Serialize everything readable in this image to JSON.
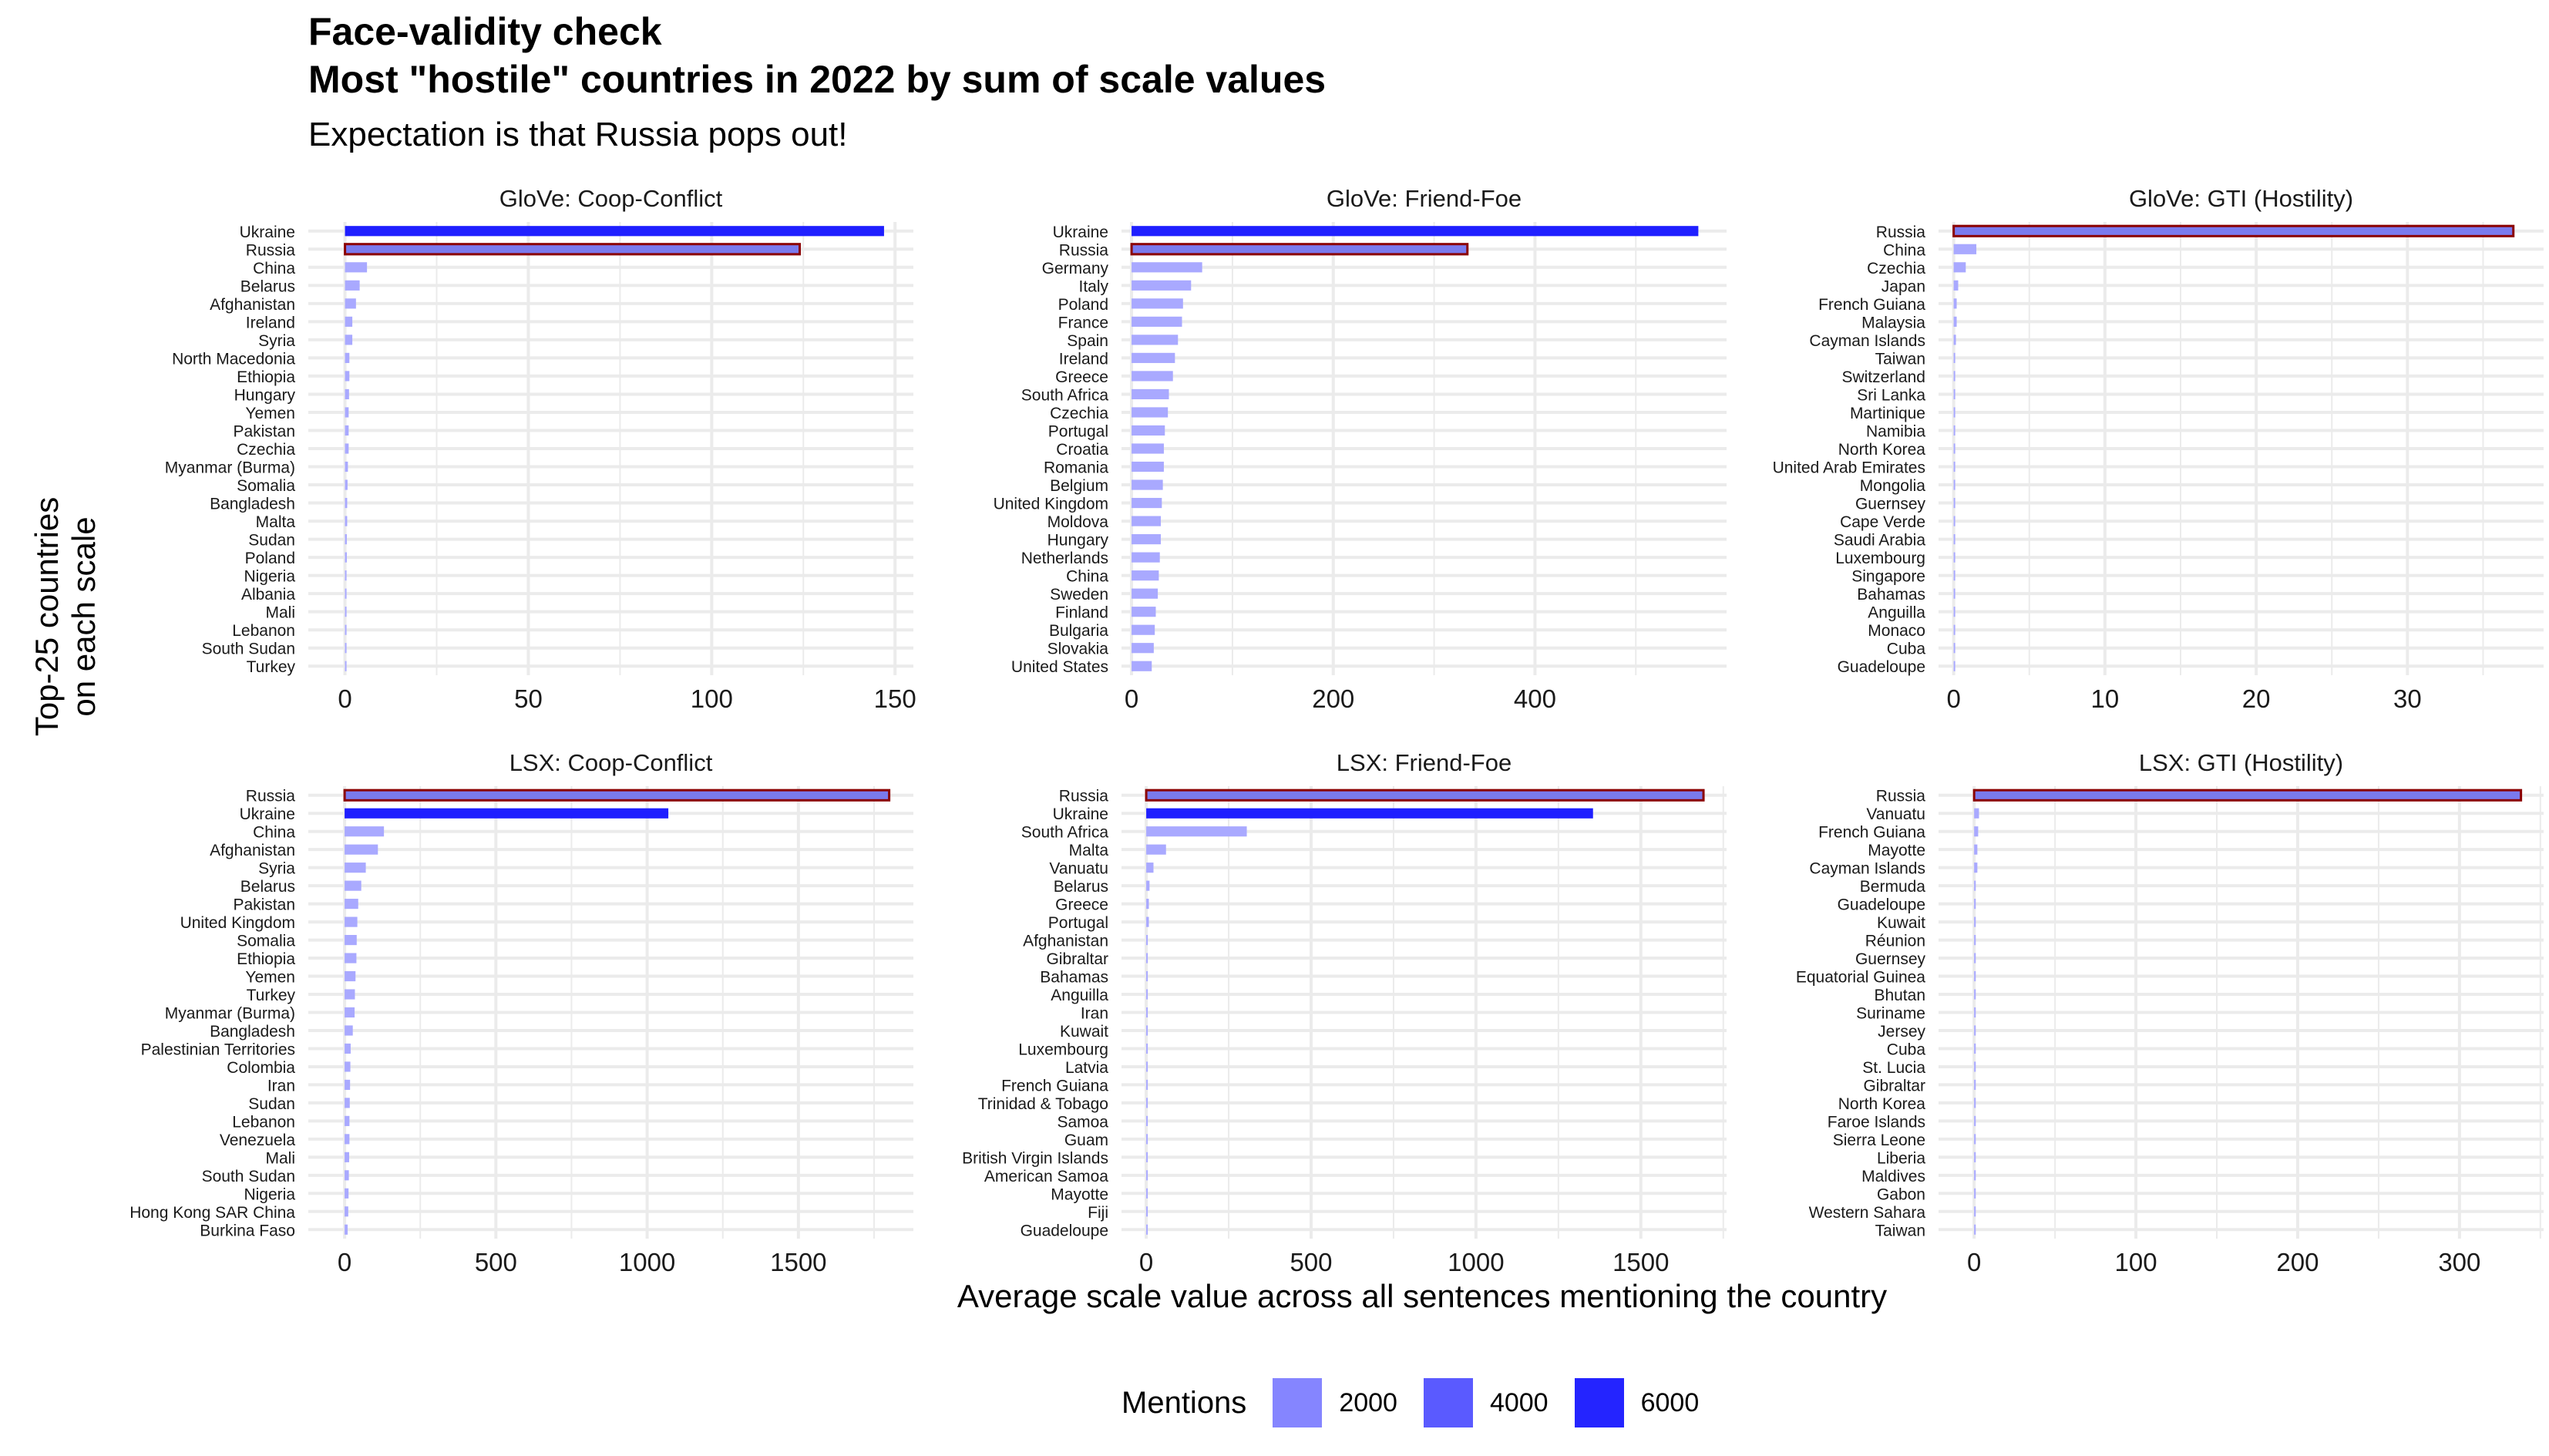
{
  "title_line1": "Face-validity check",
  "title_line2": "Most \"hostile\" countries in 2022 by sum of scale values",
  "subtitle": "Expectation is that Russia pops out!",
  "y_axis_label_line1": "Top-25 countries",
  "y_axis_label_line2": "on each scale",
  "x_axis_label": "Average scale value across all sentences mentioning the country",
  "legend": {
    "title": "Mentions",
    "items": [
      {
        "label": "2000",
        "color": "#8585ff"
      },
      {
        "label": "4000",
        "color": "#5a5aff"
      },
      {
        "label": "6000",
        "color": "#2424ff"
      }
    ]
  },
  "colors": {
    "light": "#a9a9ff",
    "mid": "#7a7aee",
    "dark": "#1f1fff",
    "highlight_outline": "#8b0000",
    "grid": "#ebebeb"
  },
  "chart_data": [
    {
      "type": "bar",
      "orientation": "horizontal",
      "title": "GloVe: Coop-Conflict",
      "xlim": [
        -10,
        155
      ],
      "xticks": [
        0,
        50,
        100,
        150
      ],
      "categories": [
        "Ukraine",
        "Russia",
        "China",
        "Belarus",
        "Afghanistan",
        "Ireland",
        "Syria",
        "North Macedonia",
        "Ethiopia",
        "Hungary",
        "Yemen",
        "Pakistan",
        "Czechia",
        "Myanmar (Burma)",
        "Somalia",
        "Bangladesh",
        "Malta",
        "Sudan",
        "Poland",
        "Nigeria",
        "Albania",
        "Mali",
        "Lebanon",
        "South Sudan",
        "Turkey"
      ],
      "values": [
        147,
        124,
        6,
        4,
        3,
        2,
        2,
        1.2,
        1.2,
        1.1,
        1,
        1,
        1,
        0.8,
        0.7,
        0.6,
        0.6,
        0.5,
        0.5,
        0.4,
        0.4,
        0.4,
        0.4,
        0.3,
        0.3
      ],
      "mentions": [
        "dark",
        "mid",
        "light",
        "light",
        "light",
        "light",
        "light",
        "light",
        "light",
        "light",
        "light",
        "light",
        "light",
        "light",
        "light",
        "light",
        "light",
        "light",
        "light",
        "light",
        "light",
        "light",
        "light",
        "light",
        "light"
      ],
      "highlight": "Russia"
    },
    {
      "type": "bar",
      "orientation": "horizontal",
      "title": "GloVe: Friend-Foe",
      "xlim": [
        -10,
        590
      ],
      "xticks": [
        0,
        200,
        400
      ],
      "categories": [
        "Ukraine",
        "Russia",
        "Germany",
        "Italy",
        "Poland",
        "France",
        "Spain",
        "Ireland",
        "Greece",
        "South Africa",
        "Czechia",
        "Portugal",
        "Croatia",
        "Romania",
        "Belgium",
        "United Kingdom",
        "Moldova",
        "Hungary",
        "Netherlands",
        "China",
        "Sweden",
        "Finland",
        "Bulgaria",
        "Slovakia",
        "United States"
      ],
      "values": [
        562,
        333,
        70,
        59,
        51,
        50,
        46,
        43,
        41,
        37,
        36,
        33,
        32,
        32,
        31,
        30,
        29,
        29,
        28,
        27,
        26,
        24,
        23,
        22,
        20
      ],
      "mentions": [
        "dark",
        "mid",
        "light",
        "light",
        "light",
        "light",
        "light",
        "light",
        "light",
        "light",
        "light",
        "light",
        "light",
        "light",
        "light",
        "light",
        "light",
        "light",
        "light",
        "light",
        "light",
        "light",
        "light",
        "light",
        "light"
      ],
      "highlight": "Russia"
    },
    {
      "type": "bar",
      "orientation": "horizontal",
      "title": "GloVe: GTI (Hostility)",
      "xlim": [
        -1,
        39
      ],
      "xticks": [
        0,
        10,
        20,
        30
      ],
      "categories": [
        "Russia",
        "China",
        "Czechia",
        "Japan",
        "French Guiana",
        "Malaysia",
        "Cayman Islands",
        "Taiwan",
        "Switzerland",
        "Sri Lanka",
        "Martinique",
        "Namibia",
        "North Korea",
        "United Arab Emirates",
        "Mongolia",
        "Guernsey",
        "Cape Verde",
        "Saudi Arabia",
        "Luxembourg",
        "Singapore",
        "Bahamas",
        "Anguilla",
        "Monaco",
        "Cuba",
        "Guadeloupe"
      ],
      "values": [
        37,
        1.5,
        0.8,
        0.3,
        0.2,
        0.2,
        0.15,
        0.1,
        0.1,
        0.1,
        0.1,
        0.1,
        0.1,
        0.1,
        0.1,
        0.1,
        0.1,
        0.1,
        0.1,
        0.1,
        0.1,
        0.1,
        0.1,
        0.1,
        0.1
      ],
      "mentions": [
        "mid",
        "light",
        "light",
        "light",
        "light",
        "light",
        "light",
        "light",
        "light",
        "light",
        "light",
        "light",
        "light",
        "light",
        "light",
        "light",
        "light",
        "light",
        "light",
        "light",
        "light",
        "light",
        "light",
        "light",
        "light"
      ],
      "highlight": "Russia"
    },
    {
      "type": "bar",
      "orientation": "horizontal",
      "title": "LSX: Coop-Conflict",
      "xlim": [
        -120,
        1880
      ],
      "xticks": [
        0,
        500,
        1000,
        1500
      ],
      "categories": [
        "Russia",
        "Ukraine",
        "China",
        "Afghanistan",
        "Syria",
        "Belarus",
        "Pakistan",
        "United Kingdom",
        "Somalia",
        "Ethiopia",
        "Yemen",
        "Turkey",
        "Myanmar (Burma)",
        "Bangladesh",
        "Palestinian Territories",
        "Colombia",
        "Iran",
        "Sudan",
        "Lebanon",
        "Venezuela",
        "Mali",
        "South Sudan",
        "Nigeria",
        "Hong Kong SAR China",
        "Burkina Faso"
      ],
      "values": [
        1800,
        1070,
        130,
        110,
        70,
        55,
        45,
        42,
        40,
        39,
        36,
        34,
        33,
        27,
        20,
        19,
        18,
        17,
        16,
        16,
        15,
        14,
        13,
        12,
        10
      ],
      "mentions": [
        "mid",
        "dark",
        "light",
        "light",
        "light",
        "light",
        "light",
        "light",
        "light",
        "light",
        "light",
        "light",
        "light",
        "light",
        "light",
        "light",
        "light",
        "light",
        "light",
        "light",
        "light",
        "light",
        "light",
        "light",
        "light"
      ],
      "highlight": "Russia"
    },
    {
      "type": "bar",
      "orientation": "horizontal",
      "title": "LSX: Friend-Foe",
      "xlim": [
        -75,
        1760
      ],
      "xticks": [
        0,
        500,
        1000,
        1500
      ],
      "categories": [
        "Russia",
        "Ukraine",
        "South Africa",
        "Malta",
        "Vanuatu",
        "Belarus",
        "Greece",
        "Portugal",
        "Afghanistan",
        "Gibraltar",
        "Bahamas",
        "Anguilla",
        "Iran",
        "Kuwait",
        "Luxembourg",
        "Latvia",
        "French Guiana",
        "Trinidad & Tobago",
        "Samoa",
        "Guam",
        "British Virgin Islands",
        "American Samoa",
        "Mayotte",
        "Fiji",
        "Guadeloupe"
      ],
      "values": [
        1690,
        1355,
        305,
        60,
        22,
        10,
        8,
        8,
        4,
        3,
        3,
        3,
        2,
        2,
        2,
        2,
        2,
        1,
        1,
        1,
        1,
        1,
        1,
        1,
        1
      ],
      "mentions": [
        "mid",
        "dark",
        "light",
        "light",
        "light",
        "light",
        "light",
        "light",
        "light",
        "light",
        "light",
        "light",
        "light",
        "light",
        "light",
        "light",
        "light",
        "light",
        "light",
        "light",
        "light",
        "light",
        "light",
        "light",
        "light"
      ],
      "highlight": "Russia"
    },
    {
      "type": "bar",
      "orientation": "horizontal",
      "title": "LSX: GTI (Hostility)",
      "xlim": [
        -22,
        352
      ],
      "xticks": [
        0,
        100,
        200,
        300
      ],
      "categories": [
        "Russia",
        "Vanuatu",
        "French Guiana",
        "Mayotte",
        "Cayman Islands",
        "Bermuda",
        "Guadeloupe",
        "Kuwait",
        "Réunion",
        "Guernsey",
        "Equatorial Guinea",
        "Bhutan",
        "Suriname",
        "Jersey",
        "Cuba",
        "St. Lucia",
        "Gibraltar",
        "North Korea",
        "Faroe Islands",
        "Sierra Leone",
        "Liberia",
        "Maldives",
        "Gabon",
        "Western Sahara",
        "Taiwan"
      ],
      "values": [
        338,
        3,
        2.5,
        2,
        2,
        1,
        1,
        1,
        1,
        1,
        1,
        1,
        1,
        1,
        1,
        1,
        1,
        1,
        1,
        1,
        1,
        1,
        1,
        1,
        1
      ],
      "mentions": [
        "mid",
        "light",
        "light",
        "light",
        "light",
        "light",
        "light",
        "light",
        "light",
        "light",
        "light",
        "light",
        "light",
        "light",
        "light",
        "light",
        "light",
        "light",
        "light",
        "light",
        "light",
        "light",
        "light",
        "light",
        "light"
      ],
      "highlight": "Russia"
    }
  ]
}
